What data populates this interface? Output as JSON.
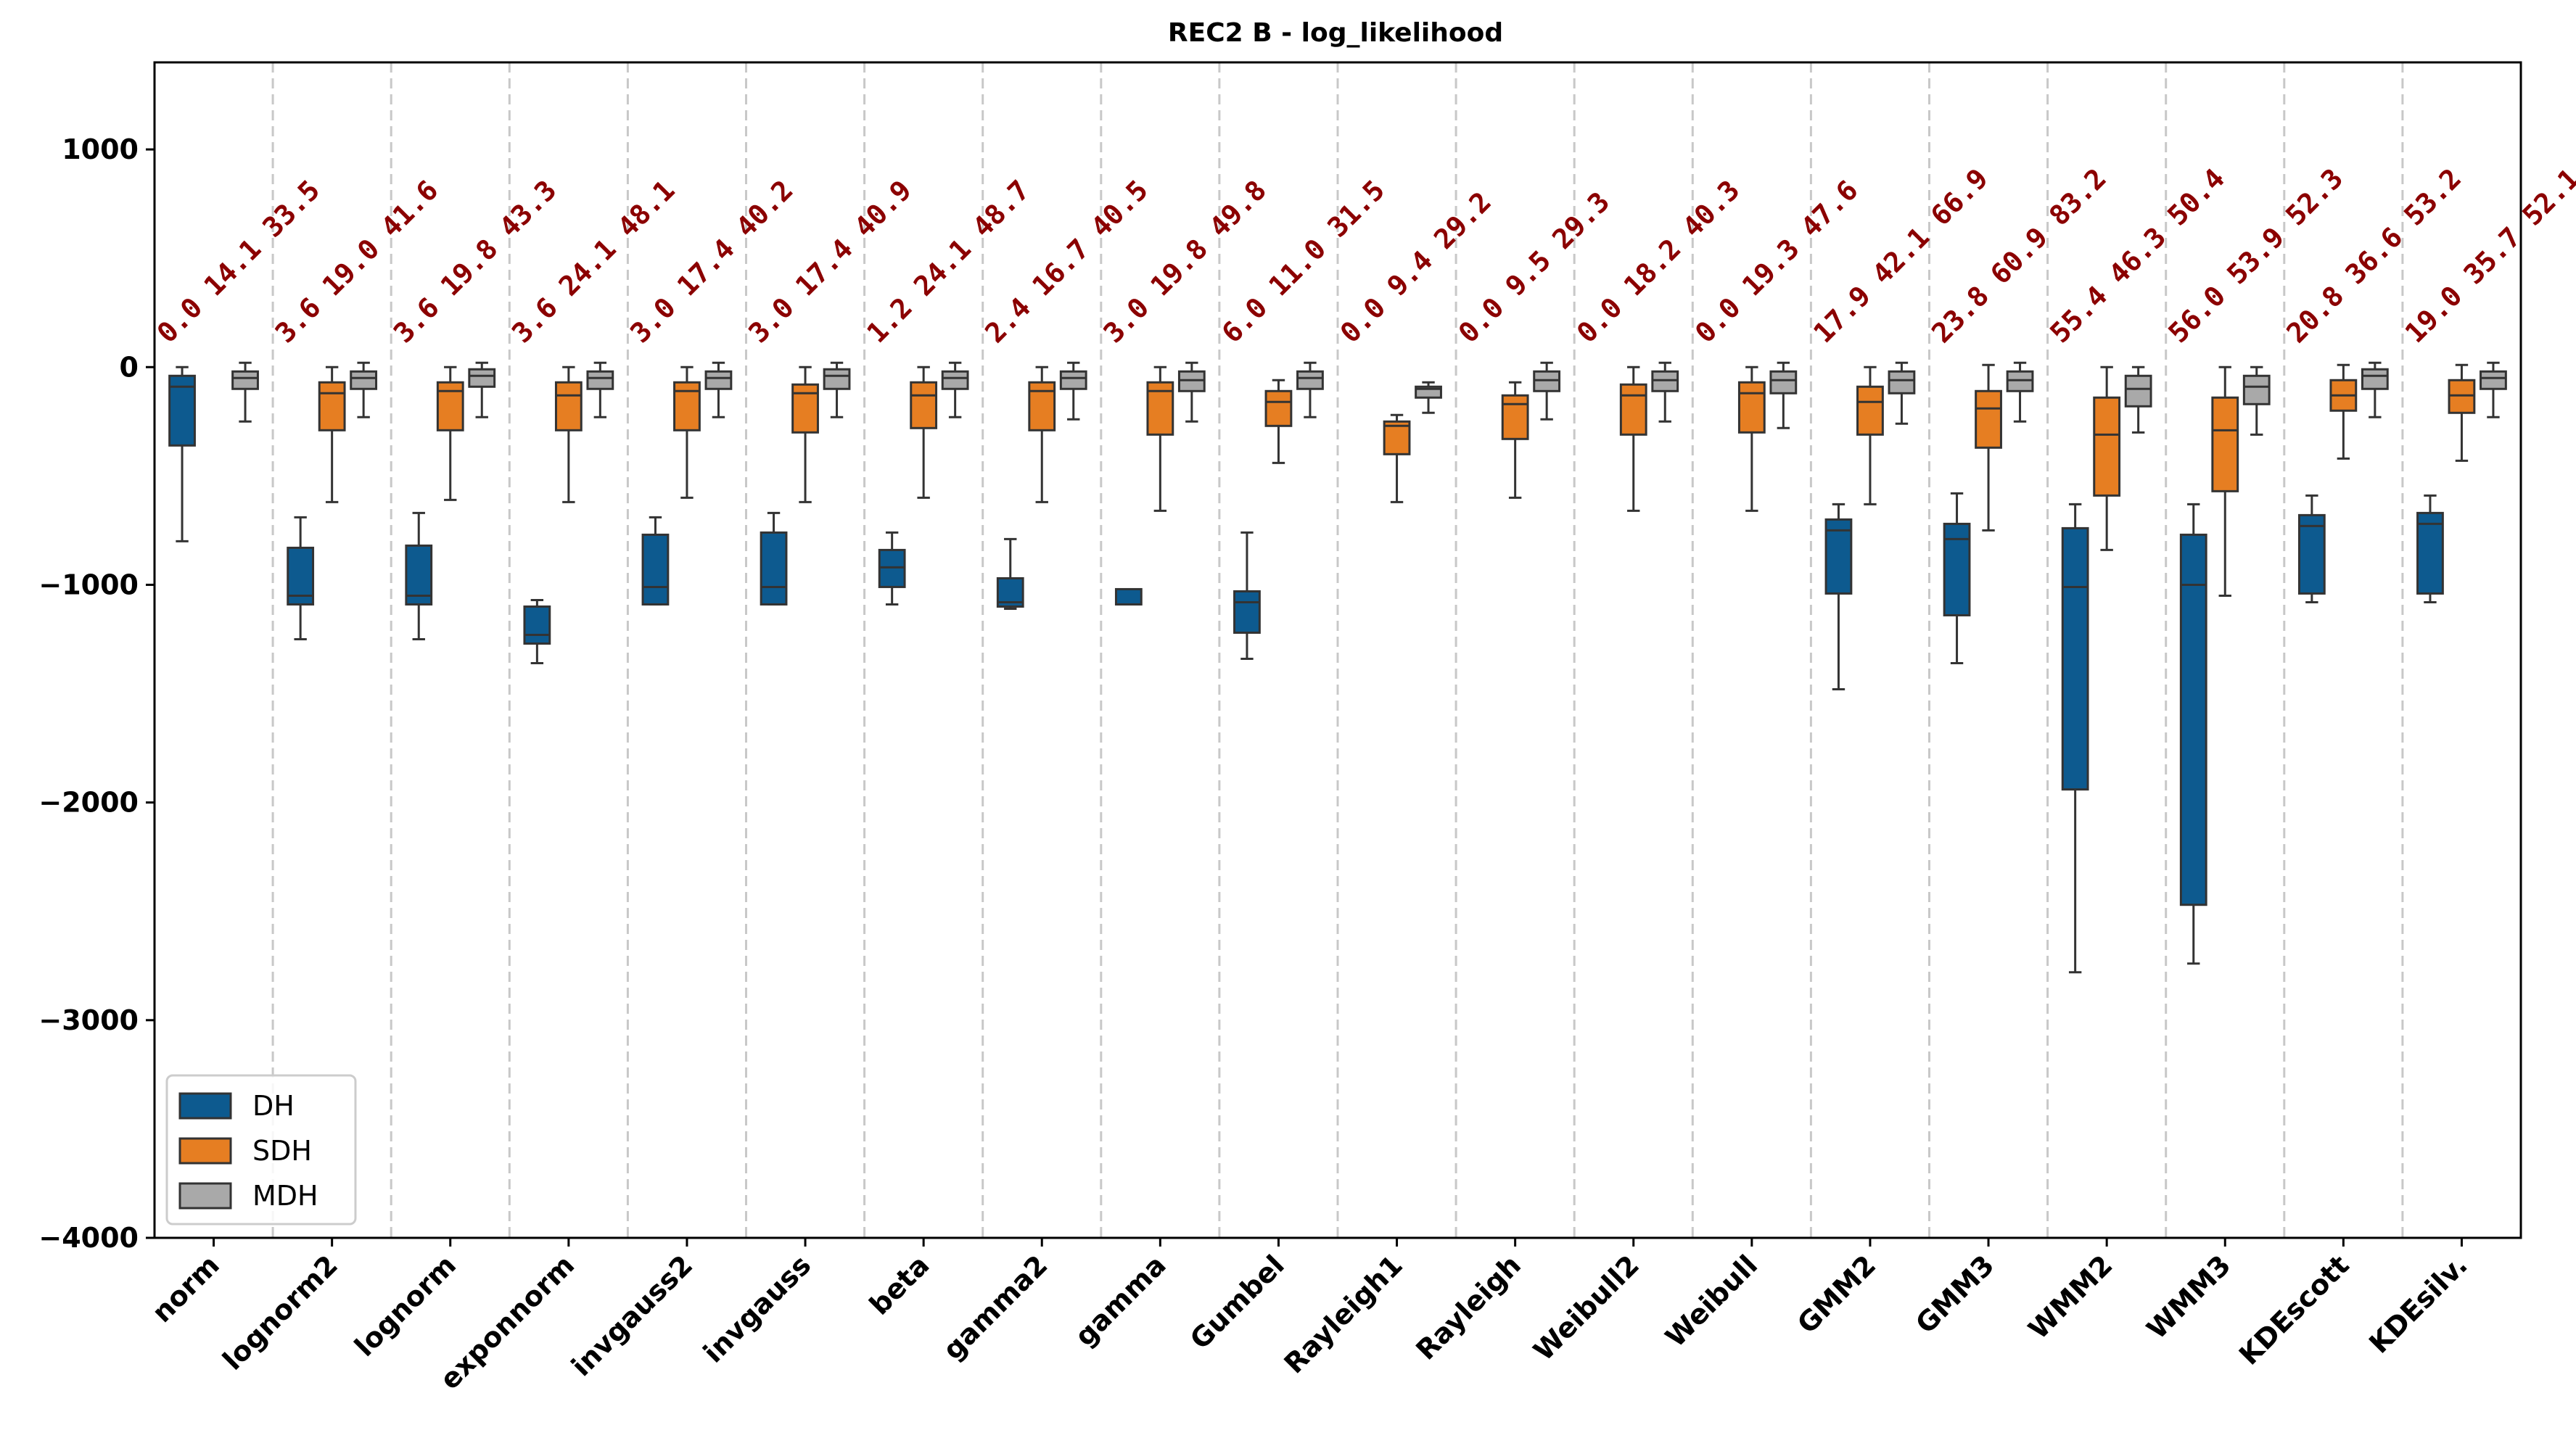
{
  "chart_data": {
    "type": "box",
    "title": "REC2 B - log_likelihood",
    "xlabel": "",
    "ylabel": "",
    "ylim": [
      -4000,
      1400
    ],
    "yticks": [
      1000,
      0,
      -1000,
      -2000,
      -3000,
      -4000
    ],
    "ytick_labels": [
      "1000",
      "0",
      "−1000",
      "−2000",
      "−3000",
      "−4000"
    ],
    "grid": "vertical dashed separators between categories",
    "legend_position": "lower-left",
    "categories": [
      "norm",
      "lognorm2",
      "lognorm",
      "exponnorm",
      "invgauss2",
      "invgauss",
      "beta",
      "gamma2",
      "gamma",
      "Gumbel",
      "Rayleigh1",
      "Rayleigh",
      "Weibull2",
      "Weibull",
      "GMM2",
      "GMM3",
      "WMM2",
      "WMM3",
      "KDEscott",
      "KDEsilv."
    ],
    "annotations": [
      "0.0 14.1 33.5",
      "3.6 19.0 41.6",
      "3.6 19.8 43.3",
      "3.6 24.1 48.1",
      "3.0 17.4 40.2",
      "3.0 17.4 40.9",
      "1.2 24.1 48.7",
      "2.4 16.7 40.5",
      "3.0 19.8 49.8",
      "6.0 11.0 31.5",
      "0.0 9.4 29.2",
      "0.0 9.5 29.3",
      "0.0 18.2 40.3",
      "0.0 19.3 47.6",
      "17.9 42.1 66.9",
      "23.8 60.9 83.2",
      "55.4 46.3 50.4",
      "56.0 53.9 52.3",
      "20.8 36.6 53.2",
      "19.0 35.7 52.1"
    ],
    "annotation_color": "#8b0000",
    "series": [
      {
        "name": "DH",
        "color": "#0d5a8f",
        "boxes": [
          {
            "whislo": -800,
            "q1": -360,
            "med": -90,
            "q3": -40,
            "whishi": 0
          },
          {
            "whislo": -1250,
            "q1": -1090,
            "med": -1050,
            "q3": -830,
            "whishi": -690
          },
          {
            "whislo": -1250,
            "q1": -1090,
            "med": -1050,
            "q3": -820,
            "whishi": -670
          },
          {
            "whislo": -1360,
            "q1": -1270,
            "med": -1230,
            "q3": -1100,
            "whishi": -1070
          },
          {
            "whislo": -1090,
            "q1": -1090,
            "med": -1010,
            "q3": -770,
            "whishi": -690
          },
          {
            "whislo": -1090,
            "q1": -1090,
            "med": -1010,
            "q3": -760,
            "whishi": -670
          },
          {
            "whislo": -1090,
            "q1": -1010,
            "med": -920,
            "q3": -840,
            "whishi": -760
          },
          {
            "whislo": -1110,
            "q1": -1100,
            "med": -1080,
            "q3": -970,
            "whishi": -790
          },
          {
            "whislo": -1090,
            "q1": -1090,
            "med": -1090,
            "q3": -1020,
            "whishi": -1020
          },
          {
            "whislo": -1340,
            "q1": -1220,
            "med": -1080,
            "q3": -1030,
            "whishi": -760
          },
          null,
          null,
          null,
          null,
          {
            "whislo": -1480,
            "q1": -1040,
            "med": -750,
            "q3": -700,
            "whishi": -630
          },
          {
            "whislo": -1360,
            "q1": -1140,
            "med": -790,
            "q3": -720,
            "whishi": -580
          },
          {
            "whislo": -2780,
            "q1": -1940,
            "med": -1010,
            "q3": -740,
            "whishi": -630
          },
          {
            "whislo": -2740,
            "q1": -2470,
            "med": -1000,
            "q3": -770,
            "whishi": -630
          },
          {
            "whislo": -1080,
            "q1": -1040,
            "med": -730,
            "q3": -680,
            "whishi": -590
          },
          {
            "whislo": -1080,
            "q1": -1040,
            "med": -720,
            "q3": -670,
            "whishi": -590
          }
        ]
      },
      {
        "name": "SDH",
        "color": "#e67e22",
        "boxes": [
          null,
          {
            "whislo": -620,
            "q1": -290,
            "med": -120,
            "q3": -70,
            "whishi": 0
          },
          {
            "whislo": -610,
            "q1": -290,
            "med": -110,
            "q3": -70,
            "whishi": 0
          },
          {
            "whislo": -620,
            "q1": -290,
            "med": -130,
            "q3": -70,
            "whishi": 0
          },
          {
            "whislo": -600,
            "q1": -290,
            "med": -110,
            "q3": -70,
            "whishi": 0
          },
          {
            "whislo": -620,
            "q1": -300,
            "med": -120,
            "q3": -80,
            "whishi": 0
          },
          {
            "whislo": -600,
            "q1": -280,
            "med": -130,
            "q3": -70,
            "whishi": 0
          },
          {
            "whislo": -620,
            "q1": -290,
            "med": -110,
            "q3": -70,
            "whishi": 0
          },
          {
            "whislo": -660,
            "q1": -310,
            "med": -110,
            "q3": -70,
            "whishi": 0
          },
          {
            "whislo": -440,
            "q1": -270,
            "med": -160,
            "q3": -110,
            "whishi": -60
          },
          {
            "whislo": -620,
            "q1": -400,
            "med": -270,
            "q3": -250,
            "whishi": -220
          },
          {
            "whislo": -600,
            "q1": -330,
            "med": -170,
            "q3": -130,
            "whishi": -70
          },
          {
            "whislo": -660,
            "q1": -310,
            "med": -130,
            "q3": -80,
            "whishi": 0
          },
          {
            "whislo": -660,
            "q1": -300,
            "med": -120,
            "q3": -70,
            "whishi": 0
          },
          {
            "whislo": -630,
            "q1": -310,
            "med": -160,
            "q3": -90,
            "whishi": 0
          },
          {
            "whislo": -750,
            "q1": -370,
            "med": -190,
            "q3": -110,
            "whishi": 10
          },
          {
            "whislo": -840,
            "q1": -590,
            "med": -310,
            "q3": -140,
            "whishi": 0
          },
          {
            "whislo": -1050,
            "q1": -570,
            "med": -290,
            "q3": -140,
            "whishi": 0
          },
          {
            "whislo": -420,
            "q1": -200,
            "med": -130,
            "q3": -60,
            "whishi": 10
          },
          {
            "whislo": -430,
            "q1": -210,
            "med": -130,
            "q3": -60,
            "whishi": 10
          }
        ]
      },
      {
        "name": "MDH",
        "color": "#a9a9a9",
        "boxes": [
          {
            "whislo": -250,
            "q1": -100,
            "med": -50,
            "q3": -20,
            "whishi": 20
          },
          {
            "whislo": -230,
            "q1": -100,
            "med": -50,
            "q3": -20,
            "whishi": 20
          },
          {
            "whislo": -230,
            "q1": -90,
            "med": -40,
            "q3": -10,
            "whishi": 20
          },
          {
            "whislo": -230,
            "q1": -100,
            "med": -50,
            "q3": -20,
            "whishi": 20
          },
          {
            "whislo": -230,
            "q1": -100,
            "med": -50,
            "q3": -20,
            "whishi": 20
          },
          {
            "whislo": -230,
            "q1": -100,
            "med": -40,
            "q3": -10,
            "whishi": 20
          },
          {
            "whislo": -230,
            "q1": -100,
            "med": -50,
            "q3": -20,
            "whishi": 20
          },
          {
            "whislo": -240,
            "q1": -100,
            "med": -50,
            "q3": -20,
            "whishi": 20
          },
          {
            "whislo": -250,
            "q1": -110,
            "med": -60,
            "q3": -20,
            "whishi": 20
          },
          {
            "whislo": -230,
            "q1": -100,
            "med": -50,
            "q3": -20,
            "whishi": 20
          },
          {
            "whislo": -210,
            "q1": -140,
            "med": -100,
            "q3": -90,
            "whishi": -70
          },
          {
            "whislo": -240,
            "q1": -110,
            "med": -60,
            "q3": -20,
            "whishi": 20
          },
          {
            "whislo": -250,
            "q1": -110,
            "med": -60,
            "q3": -20,
            "whishi": 20
          },
          {
            "whislo": -280,
            "q1": -120,
            "med": -60,
            "q3": -20,
            "whishi": 20
          },
          {
            "whislo": -260,
            "q1": -120,
            "med": -60,
            "q3": -20,
            "whishi": 20
          },
          {
            "whislo": -250,
            "q1": -110,
            "med": -60,
            "q3": -20,
            "whishi": 20
          },
          {
            "whislo": -300,
            "q1": -180,
            "med": -100,
            "q3": -40,
            "whishi": 0
          },
          {
            "whislo": -310,
            "q1": -170,
            "med": -90,
            "q3": -40,
            "whishi": 0
          },
          {
            "whislo": -230,
            "q1": -100,
            "med": -40,
            "q3": -10,
            "whishi": 20
          },
          {
            "whislo": -230,
            "q1": -100,
            "med": -50,
            "q3": -20,
            "whishi": 20
          }
        ]
      }
    ]
  }
}
